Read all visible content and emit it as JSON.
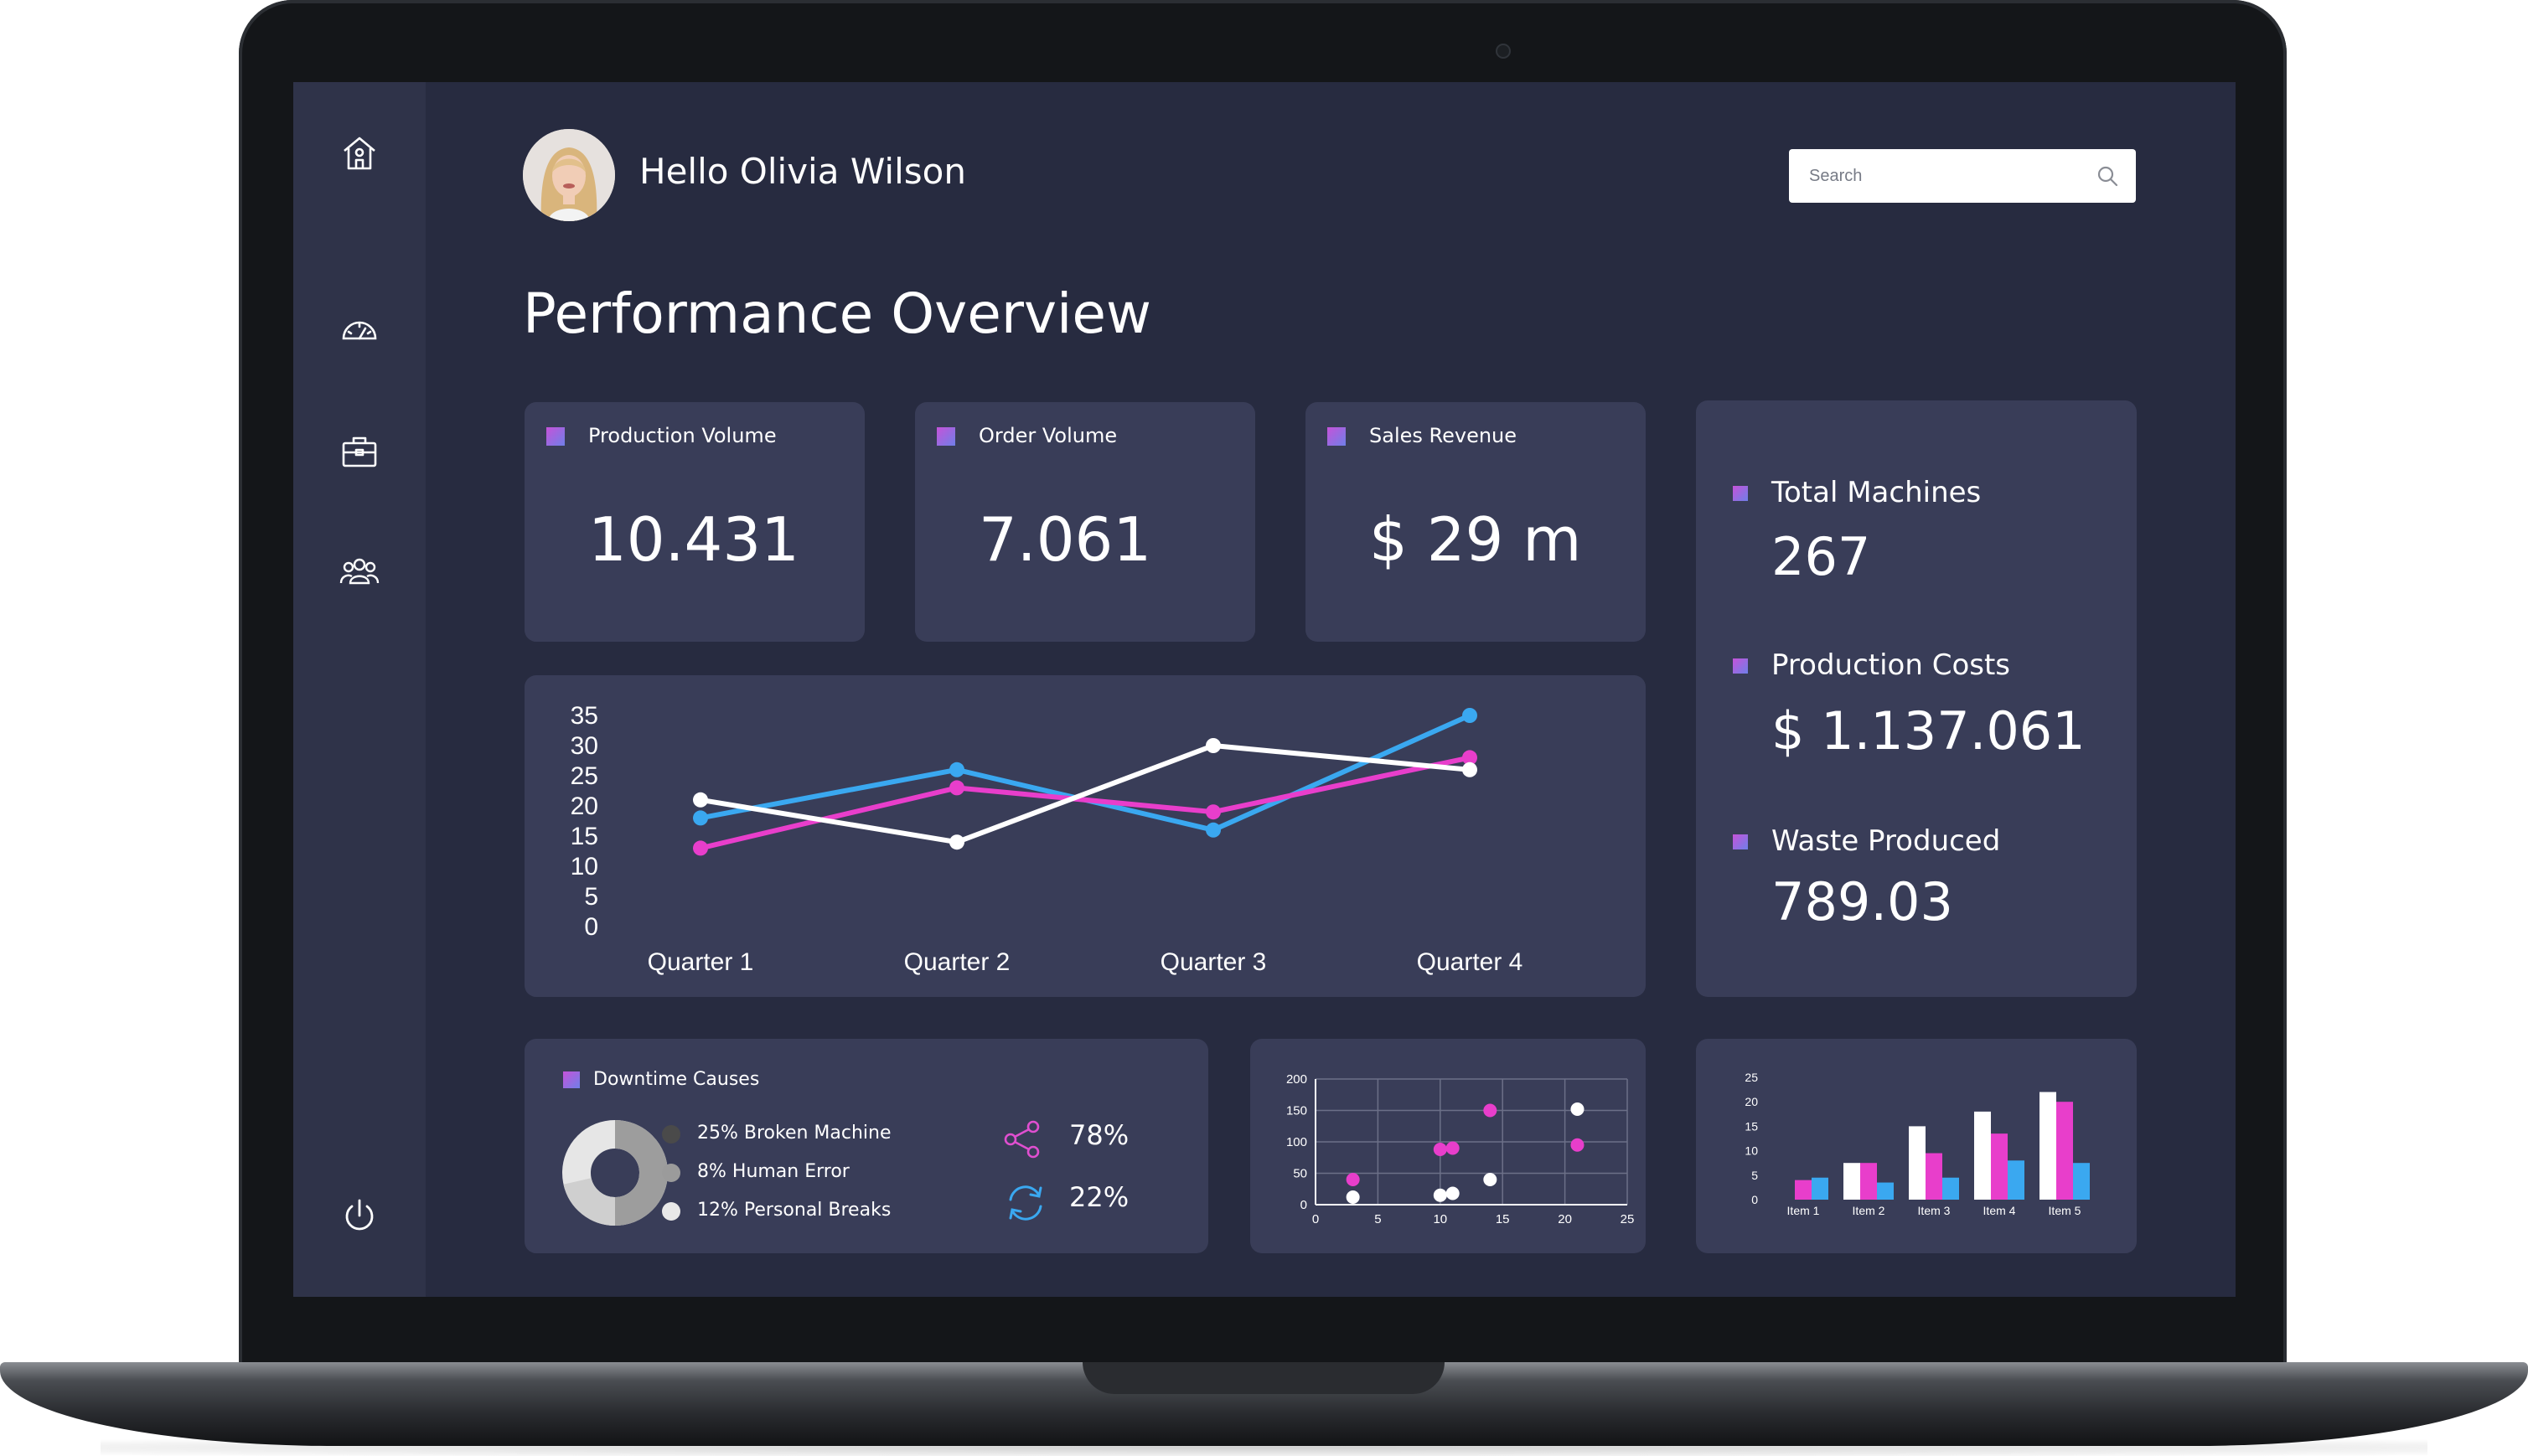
{
  "user": {
    "greeting": "Hello Olivia Wilson"
  },
  "search": {
    "placeholder": "Search"
  },
  "page_title": "Performance Overview",
  "kpis": [
    {
      "label": "Production Volume",
      "value": "10.431"
    },
    {
      "label": "Order Volume",
      "value": "7.061"
    },
    {
      "label": "Sales Revenue",
      "value": "$ 29 m"
    }
  ],
  "side_stats": [
    {
      "label": "Total Machines",
      "value": "267"
    },
    {
      "label": "Production Costs",
      "value": "$ 1.137.061"
    },
    {
      "label": "Waste Produced",
      "value": "789.03"
    }
  ],
  "downtime": {
    "title": "Downtime Causes",
    "legend": [
      {
        "label": "25% Broken Machine",
        "color": "#4a4a4a"
      },
      {
        "label": "8% Human Error",
        "color": "#9b9b9b"
      },
      {
        "label": "12% Personal Breaks",
        "color": "#e8e8e8"
      }
    ],
    "share_percent": "78%",
    "refresh_percent": "22%"
  },
  "colors": {
    "pink": "#e83ecb",
    "blue": "#3aa8f0",
    "white": "#ffffff",
    "card": "#393d58",
    "background": "#272b40"
  },
  "chart_data": [
    {
      "type": "line",
      "title": "",
      "categories": [
        "Quarter 1",
        "Quarter 2",
        "Quarter 3",
        "Quarter 4"
      ],
      "ylim": [
        0,
        35
      ],
      "yticks": [
        35,
        30,
        25,
        20,
        15,
        10,
        5,
        0
      ],
      "series": [
        {
          "name": "blue",
          "color": "#3aa8f0",
          "values": [
            18,
            26,
            16,
            35
          ]
        },
        {
          "name": "pink",
          "color": "#e83ecb",
          "values": [
            13,
            23,
            19,
            28
          ]
        },
        {
          "name": "white",
          "color": "#ffffff",
          "values": [
            21,
            14,
            30,
            26
          ]
        }
      ]
    },
    {
      "type": "scatter",
      "xlim": [
        0,
        25
      ],
      "ylim": [
        0,
        200
      ],
      "xticks": [
        0,
        5,
        10,
        15,
        20,
        25
      ],
      "yticks": [
        200,
        150,
        100,
        50,
        0
      ],
      "series": [
        {
          "name": "pink",
          "color": "#e83ecb",
          "points": [
            [
              3,
              40
            ],
            [
              10,
              88
            ],
            [
              11,
              90
            ],
            [
              14,
              150
            ],
            [
              21,
              95
            ]
          ]
        },
        {
          "name": "white",
          "color": "#ffffff",
          "points": [
            [
              3,
              12
            ],
            [
              10,
              15
            ],
            [
              11,
              18
            ],
            [
              14,
              40
            ],
            [
              21,
              152
            ]
          ]
        }
      ]
    },
    {
      "type": "bar",
      "categories": [
        "Item 1",
        "Item 2",
        "Item 3",
        "Item 4",
        "Item 5"
      ],
      "ylim": [
        0,
        25
      ],
      "yticks": [
        25,
        20,
        15,
        10,
        5,
        0
      ],
      "series": [
        {
          "name": "pink",
          "color": "#e83ecb",
          "values": [
            4,
            7.5,
            9.5,
            13.5,
            20
          ]
        },
        {
          "name": "blue",
          "color": "#3aa8f0",
          "values": [
            4.5,
            3.5,
            4.5,
            8,
            7.5
          ]
        },
        {
          "name": "white",
          "color": "#ffffff",
          "values": [
            0,
            7.5,
            15,
            18,
            22
          ]
        }
      ]
    }
  ]
}
